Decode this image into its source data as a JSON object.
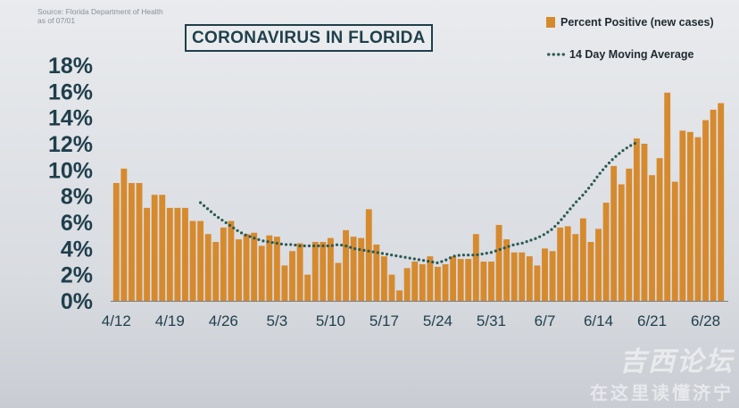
{
  "source": {
    "line1": "Source: Florida Department of Health",
    "line2": "as of 07/01"
  },
  "watermark": {
    "line1": "吉西论坛",
    "line2": "在这里读懂济宁"
  },
  "colors": {
    "bar": "#d68a2e",
    "moving_average": "#2b5a52",
    "title": "#1f3f4c",
    "axis_text": "#1f3f4c"
  },
  "chart_data": {
    "type": "bar",
    "title": "CORONAVIRUS IN FLORIDA",
    "xlabel": "",
    "ylabel": "",
    "ylim": [
      0,
      18
    ],
    "yticks": [
      0,
      2,
      4,
      6,
      8,
      10,
      12,
      14,
      16,
      18
    ],
    "ytick_labels": [
      "0%",
      "2%",
      "4%",
      "6%",
      "8%",
      "10%",
      "12%",
      "14%",
      "16%",
      "18%"
    ],
    "xtick_labels": [
      "4/12",
      "4/19",
      "4/26",
      "5/3",
      "5/10",
      "5/17",
      "5/24",
      "5/31",
      "6/7",
      "6/14",
      "6/21",
      "6/28"
    ],
    "legend": {
      "bar_label": "Percent Positive (new cases)",
      "line_label": "14 Day Moving Average",
      "position": "top-right"
    },
    "grid": false,
    "series": [
      {
        "name": "Percent Positive (new cases)",
        "kind": "bar",
        "start_date": "4/12",
        "values": [
          9.0,
          10.1,
          9.0,
          9.0,
          7.1,
          8.1,
          8.1,
          7.1,
          7.1,
          7.1,
          6.1,
          6.1,
          5.1,
          4.5,
          5.6,
          6.1,
          4.7,
          5.1,
          5.2,
          4.2,
          5.0,
          4.9,
          2.7,
          3.8,
          4.4,
          2.0,
          4.5,
          4.5,
          4.8,
          2.9,
          5.4,
          4.9,
          4.8,
          7.0,
          4.3,
          3.4,
          2.0,
          0.8,
          2.5,
          3.0,
          2.8,
          3.4,
          2.6,
          2.8,
          3.4,
          3.2,
          3.2,
          5.1,
          3.0,
          3.0,
          5.8,
          4.7,
          3.7,
          3.7,
          3.4,
          2.7,
          4.0,
          3.8,
          5.6,
          5.7,
          5.1,
          6.3,
          4.5,
          5.5,
          7.5,
          10.3,
          8.9,
          10.1,
          12.4,
          12.0,
          9.6,
          10.9,
          15.9,
          9.1,
          13.0,
          12.9,
          12.5,
          13.8,
          14.6,
          15.1
        ]
      },
      {
        "name": "14 Day Moving Average",
        "kind": "dotted-line",
        "start_index": 11,
        "values": [
          7.5,
          7.0,
          6.5,
          6.1,
          5.7,
          5.3,
          5.0,
          4.8,
          4.6,
          4.5,
          4.4,
          4.3,
          4.3,
          4.2,
          4.2,
          4.2,
          4.2,
          4.2,
          4.3,
          4.2,
          4.0,
          3.9,
          3.8,
          3.7,
          3.6,
          3.5,
          3.4,
          3.3,
          3.2,
          3.1,
          3.0,
          2.9,
          3.1,
          3.4,
          3.5,
          3.5,
          3.5,
          3.6,
          3.7,
          3.9,
          4.1,
          4.3,
          4.4,
          4.6,
          4.8,
          5.1,
          5.5,
          6.1,
          6.8,
          7.5,
          8.1,
          8.8,
          9.6,
          10.3,
          10.9,
          11.4,
          11.8,
          12.1
        ]
      }
    ]
  }
}
